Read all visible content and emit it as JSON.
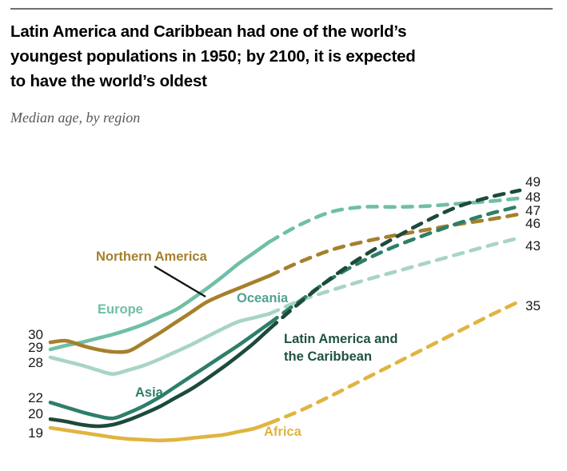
{
  "header": {
    "title_lines": [
      "Latin America and Caribbean had one of the world’s",
      "youngest populations in 1950; by 2100, it is expected",
      "to have the world’s oldest"
    ],
    "subtitle": "Median age, by region"
  },
  "chart_data": {
    "type": "line",
    "title": "Latin America and Caribbean had one of the world’s youngest populations in 1950; by 2100, it is expected to have the world’s oldest",
    "subtitle": "Median age, by region",
    "xlabel": "",
    "ylabel": "Median age",
    "x_range": [
      1950,
      2100
    ],
    "ylim": [
      17,
      51
    ],
    "grid": false,
    "legend_position": "inline line labels",
    "projection_start_year": 2020,
    "projection_style": "dashed",
    "years": [
      1950,
      1955,
      1960,
      1965,
      1970,
      1975,
      1980,
      1985,
      1990,
      1995,
      2000,
      2005,
      2010,
      2015,
      2020,
      2030,
      2040,
      2050,
      2060,
      2070,
      2080,
      2090,
      2100
    ],
    "series": [
      {
        "name": "Northern America",
        "color": "#A5802C",
        "label_color": "#A5802C",
        "label_lines": [
          "Northern America"
        ],
        "start_label": "30",
        "end_label": "46",
        "values": [
          29.8,
          30.0,
          29.4,
          28.9,
          28.6,
          28.7,
          29.8,
          31.0,
          32.3,
          33.6,
          34.9,
          35.8,
          36.6,
          37.4,
          38.2,
          40.0,
          41.5,
          42.5,
          43.3,
          44.0,
          44.7,
          45.3,
          46.0
        ]
      },
      {
        "name": "Europe",
        "color": "#6FBFA7",
        "label_color": "#6FBFA7",
        "label_lines": [
          "Europe"
        ],
        "start_label": "29",
        "end_label": "48",
        "values": [
          28.9,
          29.4,
          29.8,
          30.3,
          30.8,
          31.4,
          32.1,
          33.0,
          33.9,
          35.2,
          36.6,
          38.1,
          39.7,
          41.1,
          42.5,
          44.7,
          46.3,
          46.9,
          46.9,
          47.0,
          47.3,
          47.6,
          48.0
        ]
      },
      {
        "name": "Oceania",
        "color": "#A8D5C3",
        "label_color": "#4FA390",
        "label_lines": [
          "Oceania"
        ],
        "start_label": "28",
        "end_label": "43",
        "values": [
          27.9,
          27.4,
          26.9,
          26.3,
          25.8,
          26.3,
          26.9,
          27.7,
          28.6,
          29.5,
          30.5,
          31.5,
          32.4,
          32.9,
          33.4,
          35.1,
          36.4,
          37.6,
          38.7,
          39.8,
          40.9,
          42.0,
          43.0
        ]
      },
      {
        "name": "Asia",
        "color": "#2E7E6A",
        "label_color": "#2E7E6A",
        "label_lines": [
          "Asia"
        ],
        "start_label": "22",
        "end_label": "47",
        "values": [
          22.2,
          21.6,
          21.0,
          20.5,
          20.2,
          20.9,
          21.8,
          22.9,
          24.2,
          25.5,
          26.8,
          28.1,
          29.4,
          30.8,
          32.2,
          35.1,
          37.9,
          40.1,
          41.9,
          43.4,
          44.8,
          46.0,
          47.0
        ]
      },
      {
        "name": "Latin America and the Caribbean",
        "color": "#1C4A3B",
        "label_color": "#1F5244",
        "label_lines": [
          "Latin America and",
          "the Caribbean"
        ],
        "start_label": "20",
        "end_label": "49",
        "values": [
          20.1,
          19.8,
          19.4,
          19.2,
          19.4,
          20.0,
          20.8,
          21.7,
          22.8,
          23.9,
          25.2,
          26.6,
          28.1,
          29.7,
          31.5,
          34.9,
          38.0,
          40.7,
          43.0,
          45.1,
          46.9,
          48.1,
          49.0
        ]
      },
      {
        "name": "Africa",
        "color": "#E0B440",
        "label_color": "#E0B440",
        "label_lines": [
          "Africa"
        ],
        "start_label": "19",
        "end_label": "35",
        "values": [
          19.0,
          18.7,
          18.4,
          18.1,
          17.8,
          17.6,
          17.5,
          17.4,
          17.5,
          17.7,
          17.9,
          18.1,
          18.5,
          18.9,
          19.6,
          21.2,
          23.1,
          25.1,
          27.1,
          29.1,
          31.1,
          33.1,
          35.0
        ]
      }
    ]
  }
}
